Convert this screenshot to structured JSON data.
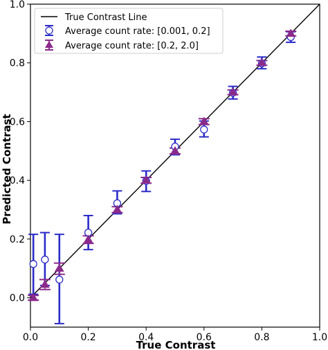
{
  "chart_data": {
    "type": "scatter",
    "xlabel": "True Contrast",
    "ylabel": "Predicted Contrast",
    "xlim": [
      0.0,
      1.0
    ],
    "ylim": [
      -0.1,
      1.0
    ],
    "xticks": [
      "0.0",
      "0.2",
      "0.4",
      "0.6",
      "0.8",
      "1.0"
    ],
    "yticks": [
      "0.0",
      "0.2",
      "0.4",
      "0.6",
      "0.8",
      "1.0"
    ],
    "grid": false,
    "legend_position": "top-left",
    "reference_line": {
      "name": "True Contrast Line",
      "x": [
        0.0,
        1.0
      ],
      "y": [
        0.0,
        1.0
      ],
      "color": "#000000"
    },
    "series": [
      {
        "name": "Average count rate: [0.001, 0.2]",
        "marker": "open-circle",
        "color": "#2b2bc8",
        "x": [
          0.01,
          0.05,
          0.1,
          0.2,
          0.3,
          0.4,
          0.5,
          0.6,
          0.7,
          0.8,
          0.9
        ],
        "y": [
          0.115,
          0.13,
          0.062,
          0.222,
          0.322,
          0.398,
          0.515,
          0.573,
          0.698,
          0.798,
          0.888
        ],
        "y_low": [
          0.012,
          0.042,
          -0.088,
          0.164,
          0.286,
          0.362,
          0.487,
          0.548,
          0.677,
          0.78,
          0.87
        ],
        "y_high": [
          0.216,
          0.222,
          0.216,
          0.28,
          0.364,
          0.432,
          0.54,
          0.602,
          0.72,
          0.82,
          0.906
        ]
      },
      {
        "name": "Average count rate: [0.2, 2.0]",
        "marker": "filled-triangle",
        "color": "#8b2a8b",
        "x": [
          0.01,
          0.05,
          0.1,
          0.2,
          0.3,
          0.4,
          0.5,
          0.6,
          0.7,
          0.8,
          0.9
        ],
        "y": [
          0.0,
          0.045,
          0.1,
          0.198,
          0.3,
          0.4,
          0.5,
          0.6,
          0.7,
          0.8,
          0.9
        ],
        "y_low": [
          -0.008,
          0.028,
          0.08,
          0.185,
          0.29,
          0.39,
          0.49,
          0.59,
          0.692,
          0.792,
          0.892
        ],
        "y_high": [
          0.008,
          0.062,
          0.118,
          0.211,
          0.31,
          0.41,
          0.51,
          0.61,
          0.708,
          0.808,
          0.908
        ]
      }
    ]
  }
}
